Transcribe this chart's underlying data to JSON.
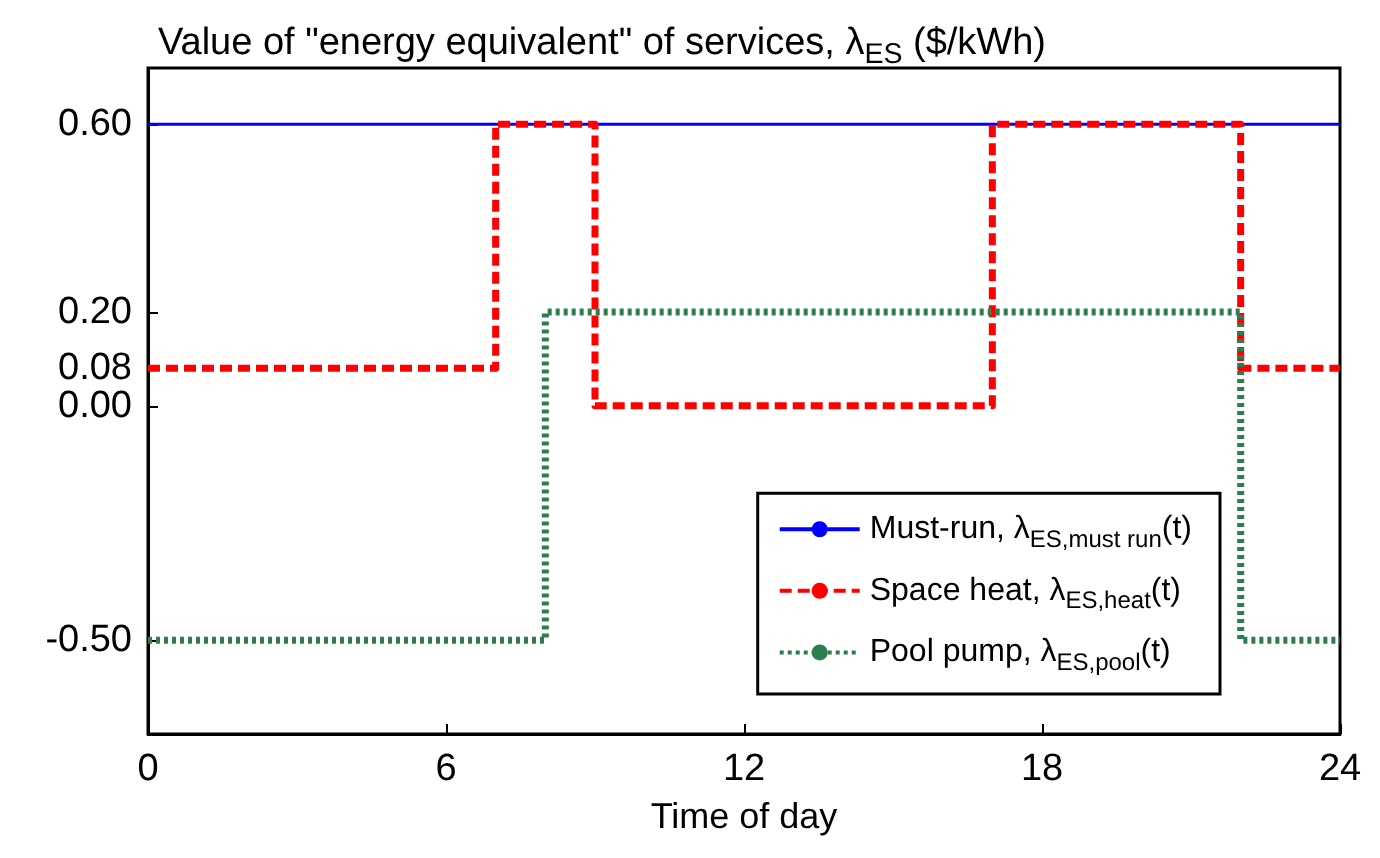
{
  "chart_data": {
    "type": "step",
    "title": "Value of \"energy equivalent\" of services, λ$_{ES}$ ($/kWh)",
    "xlabel": "Time of day",
    "xlim": [
      0,
      24
    ],
    "xticks": [
      0,
      6,
      12,
      18,
      24
    ],
    "ylim": [
      -0.7,
      0.72
    ],
    "yticks": [
      {
        "value": -0.5,
        "label": "-0.50"
      },
      {
        "value": 0,
        "label": "0.00"
      },
      {
        "value": 0.08,
        "label": "0.08"
      },
      {
        "value": 0.2,
        "label": "0.20"
      },
      {
        "value": 0.6,
        "label": "0.60"
      }
    ],
    "grid": false,
    "legend": "bottom right",
    "marker": "none",
    "series": [
      {
        "name": "Must-run, λ$_{ES,must run}$(t)",
        "type": "line",
        "color": "#0000ff",
        "line_style": "solid",
        "x": [
          0,
          24
        ],
        "values": [
          0.6,
          0.6
        ]
      },
      {
        "name": "Space heat, λ$_{ES,heat}$(t)",
        "color": "#ff0000",
        "line_style": "dashed",
        "x": [
          0,
          7,
          9,
          17,
          22,
          24
        ],
        "values": [
          0.08,
          0.6,
          0,
          0.6,
          0.08,
          0.08
        ]
      },
      {
        "name": "Pool pump, λ$_{ES,pool}$(t)",
        "color": "#2e7d4f",
        "line_style": "dotted",
        "x": [
          0,
          8,
          22,
          24
        ],
        "values": [
          -0.5,
          0.2,
          -0.5,
          -0.5
        ]
      }
    ]
  }
}
